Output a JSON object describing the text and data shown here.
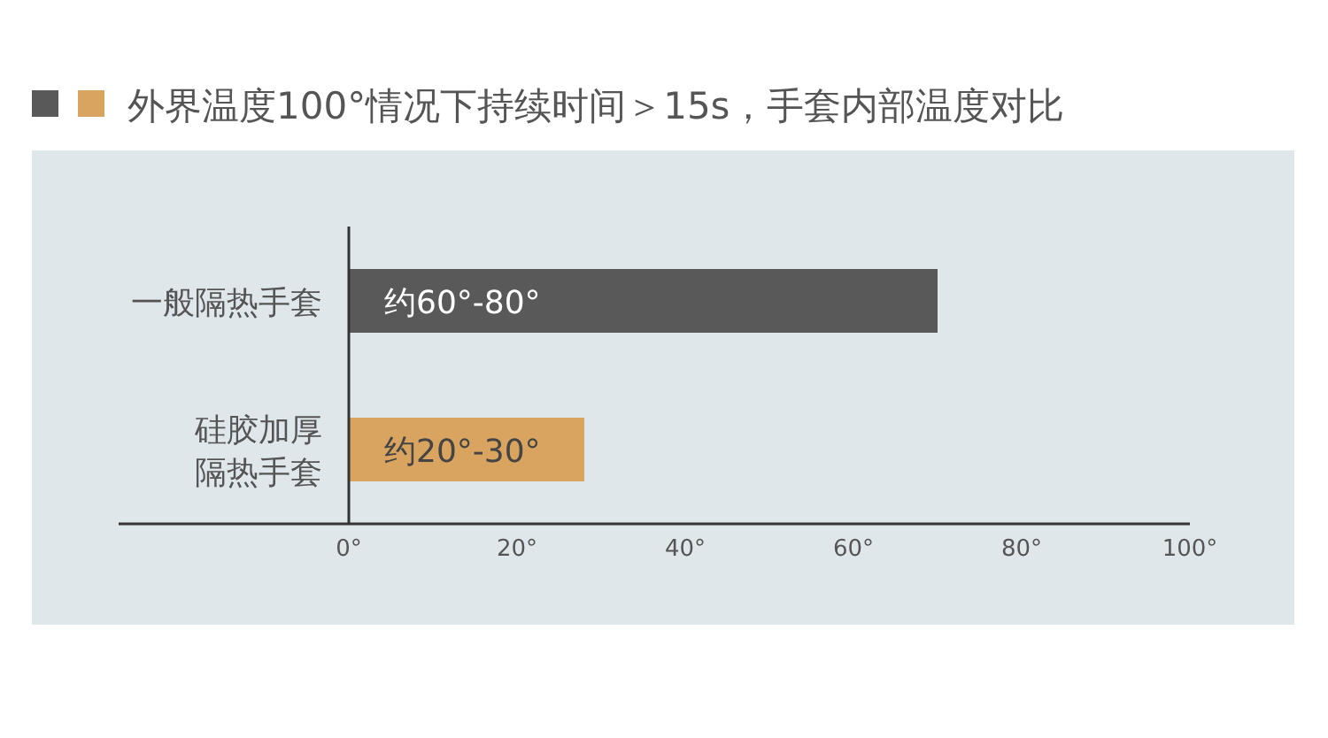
{
  "chart_data": {
    "type": "bar",
    "orientation": "horizontal",
    "title": "外界温度100°情况下持续时间＞15s，手套内部温度对比",
    "categories": [
      "一般隔热手套",
      "硅胶加厚隔热手套"
    ],
    "values": [
      70,
      28
    ],
    "colors": [
      "#595959",
      "#d9a45f"
    ],
    "value_labels": [
      "约60°-80°",
      "约20°-30°"
    ],
    "xlim": [
      0,
      100
    ],
    "xticks": [
      {
        "value": 0,
        "label": "0°"
      },
      {
        "value": 20,
        "label": "20°"
      },
      {
        "value": 40,
        "label": "40°"
      },
      {
        "value": 60,
        "label": "60°"
      },
      {
        "value": 80,
        "label": "80°"
      },
      {
        "value": 100,
        "label": "100°"
      }
    ],
    "tick_labels": "x"
  }
}
